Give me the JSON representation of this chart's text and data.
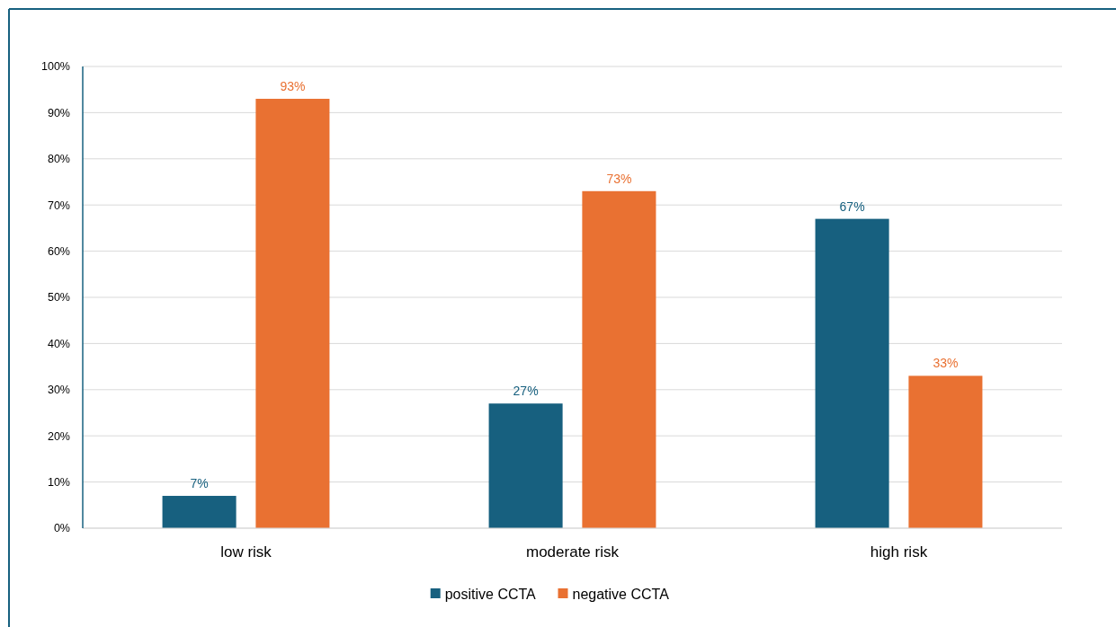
{
  "chart_data": {
    "type": "bar",
    "categories": [
      "low risk",
      "moderate risk",
      "high risk"
    ],
    "series": [
      {
        "name": "positive CCTA",
        "color": "#17607f",
        "values": [
          7,
          27,
          67
        ],
        "value_labels": [
          "7%",
          "27%",
          "67%"
        ]
      },
      {
        "name": "negative CCTA",
        "color": "#e97132",
        "values": [
          93,
          73,
          33
        ],
        "value_labels": [
          "93%",
          "73%",
          "33%"
        ]
      }
    ],
    "ylim": [
      0,
      100
    ],
    "yticks": [
      {
        "value": 0,
        "label": "0%"
      },
      {
        "value": 10,
        "label": "10%"
      },
      {
        "value": 20,
        "label": "20%"
      },
      {
        "value": 30,
        "label": "30%"
      },
      {
        "value": 40,
        "label": "40%"
      },
      {
        "value": 50,
        "label": "50%"
      },
      {
        "value": 60,
        "label": "60%"
      },
      {
        "value": 70,
        "label": "70%"
      },
      {
        "value": 80,
        "label": "80%"
      },
      {
        "value": 90,
        "label": "90%"
      },
      {
        "value": 100,
        "label": "100%"
      }
    ],
    "grid": "y",
    "legend": "bottom"
  }
}
